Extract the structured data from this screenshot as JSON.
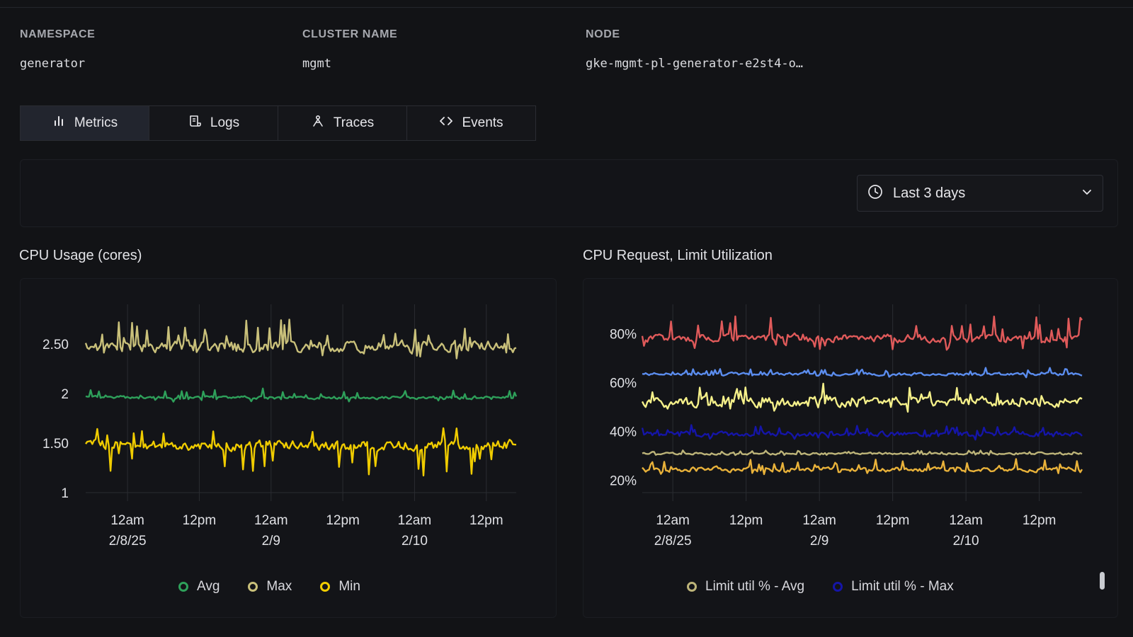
{
  "meta": {
    "namespace_label": "NAMESPACE",
    "namespace_value": "generator",
    "cluster_label": "CLUSTER NAME",
    "cluster_value": "mgmt",
    "node_label": "NODE",
    "node_value": "gke-mgmt-pl-generator-e2st4-o…"
  },
  "tabs": [
    {
      "label": "Metrics",
      "icon": "bar-chart-icon",
      "active": true
    },
    {
      "label": "Logs",
      "icon": "scroll-icon",
      "active": false
    },
    {
      "label": "Traces",
      "icon": "traces-icon",
      "active": false
    },
    {
      "label": "Events",
      "icon": "code-icon",
      "active": false
    }
  ],
  "time_range": {
    "label": "Last 3 days",
    "icon": "clock-icon",
    "chevron": "chevron-down-icon"
  },
  "charts": {
    "cpu_usage": {
      "title": "CPU Usage (cores)"
    },
    "cpu_util": {
      "title": "CPU Request, Limit Utilization"
    }
  },
  "chart_data": [
    {
      "type": "line",
      "title": "CPU Usage (cores)",
      "x_tick_labels": [
        [
          "12am",
          "2/8/25"
        ],
        [
          "12pm",
          ""
        ],
        [
          "12am",
          "2/9"
        ],
        [
          "12pm",
          ""
        ],
        [
          "12am",
          "2/10"
        ],
        [
          "12pm",
          ""
        ]
      ],
      "y_tick_labels": [
        "1",
        "1.50",
        "2",
        "2.50"
      ],
      "y_ticks": [
        1,
        1.5,
        2,
        2.5
      ],
      "ylim": [
        1,
        2.9
      ],
      "x_range_hours": [
        -7,
        65
      ],
      "x_tick_hours": [
        0,
        12,
        24,
        36,
        48,
        60
      ],
      "grid": true,
      "series": [
        {
          "name": "Max",
          "color": "#c9c07a",
          "base": 2.47,
          "noise": 0.09,
          "spikes": 0.18,
          "seed": 11
        },
        {
          "name": "Avg",
          "color": "#2ea05a",
          "base": 1.96,
          "noise": 0.025,
          "spikes": 0.05,
          "seed": 23
        },
        {
          "name": "Min",
          "color": "#f0cc00",
          "base": 1.48,
          "noise": 0.08,
          "spikes": -0.2,
          "seed": 37
        }
      ],
      "legend": [
        {
          "label": "Avg",
          "color": "#2ea05a"
        },
        {
          "label": "Max",
          "color": "#c9c07a"
        },
        {
          "label": "Min",
          "color": "#f0cc00"
        }
      ]
    },
    {
      "type": "line",
      "title": "CPU Request, Limit Utilization",
      "x_tick_labels": [
        [
          "12am",
          "2/8/25"
        ],
        [
          "12pm",
          ""
        ],
        [
          "12am",
          "2/9"
        ],
        [
          "12pm",
          ""
        ],
        [
          "12am",
          "2/10"
        ],
        [
          "12pm",
          ""
        ]
      ],
      "y_tick_labels": [
        "20%",
        "40%",
        "60%",
        "80%"
      ],
      "y_ticks": [
        20,
        40,
        60,
        80
      ],
      "ylim": [
        15,
        92
      ],
      "x_range_hours": [
        -5,
        67
      ],
      "x_tick_hours": [
        0,
        12,
        24,
        36,
        48,
        60
      ],
      "grid": true,
      "series": [
        {
          "color": "#e05a5a",
          "base": 78,
          "noise": 2.5,
          "spikes": 6,
          "seed": 5
        },
        {
          "color": "#5b8def",
          "base": 63.5,
          "noise": 0.9,
          "spikes": 1.5,
          "seed": 7
        },
        {
          "color": "#f5f08a",
          "base": 52,
          "noise": 3,
          "spikes": 4,
          "seed": 13
        },
        {
          "name": "Limit util % - Max",
          "color": "#1515a8",
          "base": 39,
          "noise": 1.5,
          "spikes": 2,
          "seed": 17
        },
        {
          "name": "Limit util % - Avg",
          "color": "#bdb479",
          "base": 31,
          "noise": 0.7,
          "spikes": 0.8,
          "seed": 19
        },
        {
          "color": "#e9b23a",
          "base": 24.5,
          "noise": 1.5,
          "spikes": 2.5,
          "seed": 29
        }
      ],
      "legend": [
        {
          "label": "Limit util % - Avg",
          "color": "#bdb479"
        },
        {
          "label": "Limit util % - Max",
          "color": "#1515a8"
        }
      ]
    }
  ]
}
